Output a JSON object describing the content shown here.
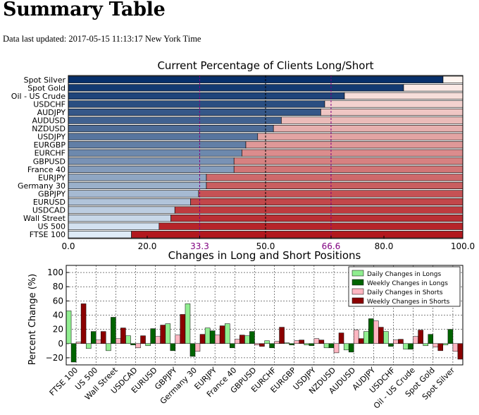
{
  "page": {
    "title": "Summary Table",
    "updated_label": "Data last updated: 2017-05-15 11:13:17 New York Time"
  },
  "chart_data": [
    {
      "type": "bar",
      "orientation": "horizontal",
      "stacked": true,
      "title": "Current Percentage of Clients Long/Short",
      "categories": [
        "Spot Silver",
        "Spot Gold",
        "Oil - US Crude",
        "USDCHF",
        "AUDJPY",
        "AUDUSD",
        "NZDUSD",
        "USDJPY",
        "EURGBP",
        "EURCHF",
        "GBPUSD",
        "France 40",
        "EURJPY",
        "Germany 30",
        "GBPJPY",
        "EURUSD",
        "USDCAD",
        "Wall Street",
        "US 500",
        "FTSE 100"
      ],
      "series": [
        {
          "role": "long",
          "values": [
            95,
            85,
            70,
            65,
            64,
            54,
            52,
            48,
            45,
            44,
            42,
            42,
            35,
            35,
            33,
            31,
            27,
            26,
            23,
            16
          ]
        },
        {
          "role": "short",
          "values": [
            5,
            15,
            30,
            35,
            36,
            46,
            48,
            52,
            55,
            56,
            58,
            58,
            65,
            65,
            67,
            69,
            73,
            74,
            77,
            84
          ]
        }
      ],
      "xlim": [
        0,
        100
      ],
      "xticks": [
        "0.0",
        "20.0",
        "33.3",
        "50.0",
        "66.6",
        "80.0",
        "100.0"
      ],
      "reference_lines": [
        33.3,
        66.6
      ],
      "colors": {
        "long_dark": "#08306b",
        "long_light": "#deebf7",
        "short_light": "#fff5f0",
        "short_dark": "#b2181e",
        "reference": "#800080"
      }
    },
    {
      "type": "bar",
      "title": "Changes in Long and Short Positions",
      "ylabel": "Percent Change (%)",
      "ylim": [
        -30,
        110
      ],
      "yticks": [
        "−20",
        "0",
        "20",
        "40",
        "60",
        "80",
        "100"
      ],
      "grid": true,
      "legend": "top-right",
      "categories": [
        "FTSE 100",
        "US 500",
        "Wall Street",
        "USDCAD",
        "EURUSD",
        "GBPJPY",
        "Germany 30",
        "EURJPY",
        "France 40",
        "GBPUSD",
        "EURCHF",
        "EURGBP",
        "USDJPY",
        "NZDUSD",
        "AUDUSD",
        "AUDJPY",
        "USDCHF",
        "Oil - US Crude",
        "Spot Gold",
        "Spot Silver"
      ],
      "series": [
        {
          "name": "Daily Changes in Longs",
          "color": "#90ee90",
          "values": [
            46,
            -7,
            -10,
            11,
            -3,
            28,
            56,
            22,
            28,
            11,
            4,
            1,
            -2,
            -6,
            -9,
            17,
            17,
            -8,
            -3,
            -2
          ]
        },
        {
          "name": "Weekly Changes in Longs",
          "color": "#006400",
          "values": [
            -26,
            17,
            37,
            -2,
            21,
            -10,
            -18,
            18,
            -6,
            17,
            -6,
            -2,
            -3,
            -6,
            -12,
            35,
            -4,
            -8,
            13,
            20
          ]
        },
        {
          "name": "Daily Changes in Shorts",
          "color": "#ffb6c1",
          "values": [
            2,
            5,
            7,
            -6,
            10,
            12,
            -11,
            12,
            6,
            -2,
            3,
            4,
            7,
            -13,
            19,
            32,
            5,
            10,
            -5,
            -11
          ]
        },
        {
          "name": "Weekly Changes in Shorts",
          "color": "#8b0000",
          "values": [
            56,
            17,
            22,
            11,
            26,
            41,
            13,
            25,
            12,
            -4,
            23,
            5,
            5,
            15,
            7,
            23,
            6,
            19,
            -10,
            -22
          ]
        }
      ]
    }
  ]
}
